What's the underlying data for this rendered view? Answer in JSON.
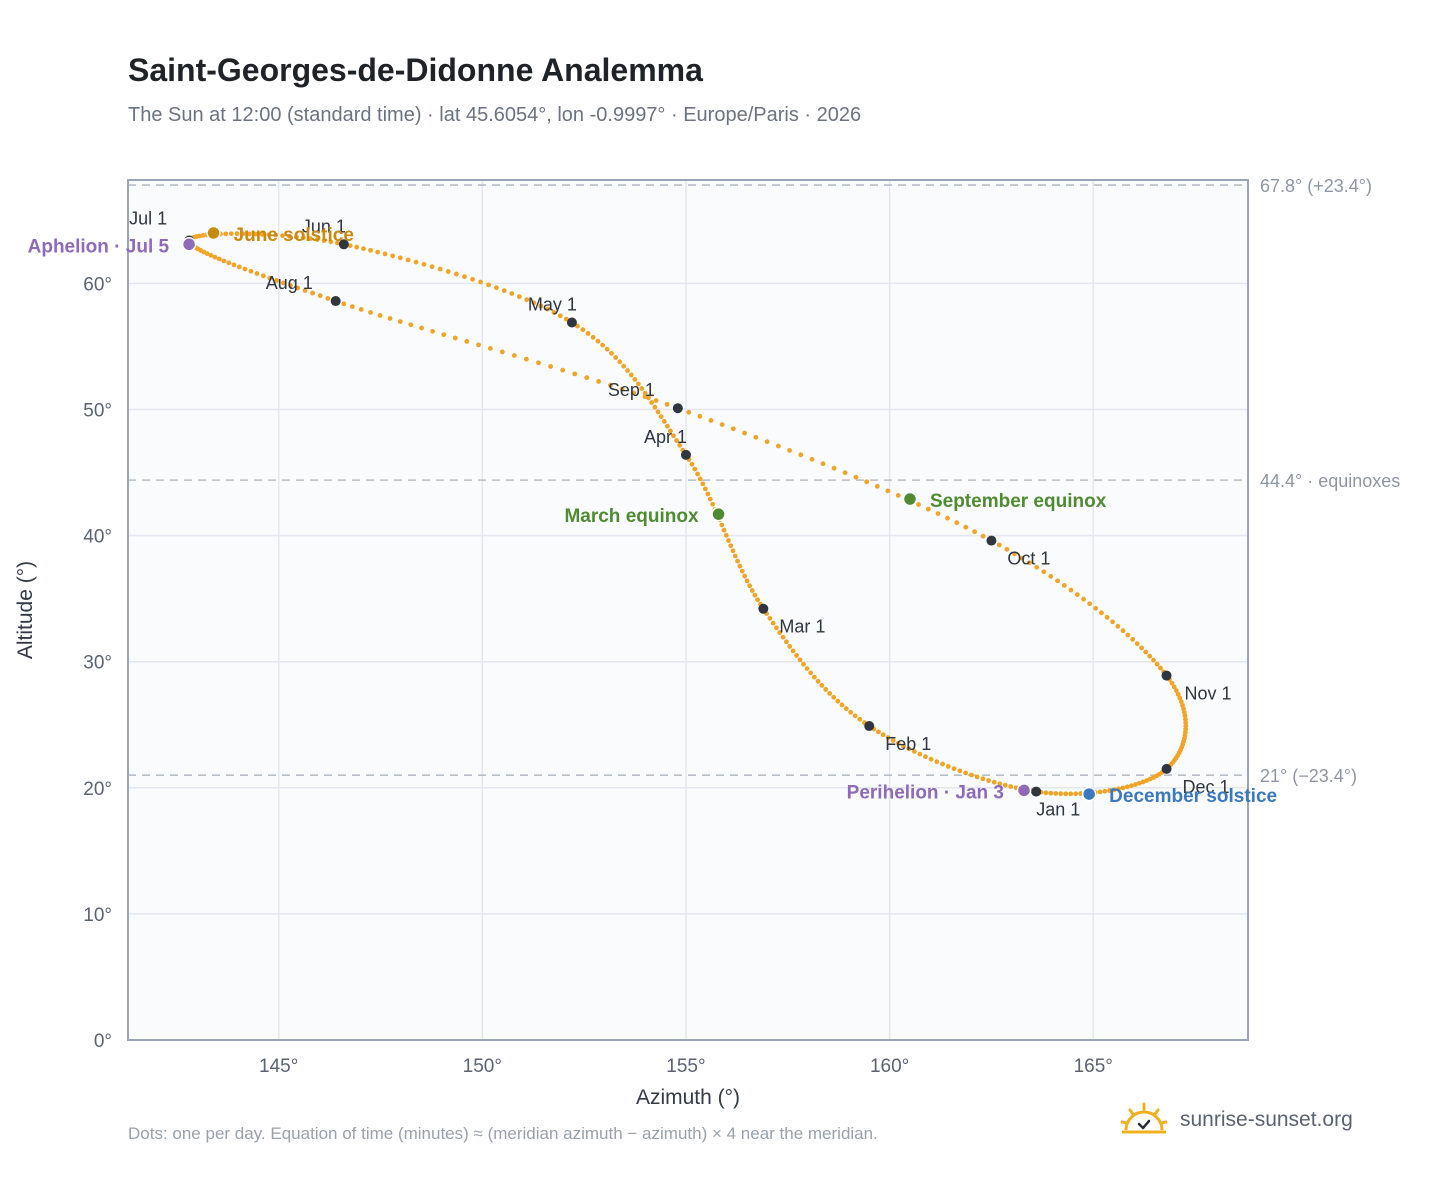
{
  "header": {
    "title": "Saint-Georges-de-Didonne Analemma",
    "subtitle": "The Sun at 12:00 (standard time) · lat 45.6054°, lon -0.9997° · Europe/Paris · 2026"
  },
  "footer": {
    "note": "Dots: one per day. Equation of time (minutes) ≈ (meridian azimuth − azimuth) × 4 near the meridian.",
    "brand": "sunrise-sunset.org"
  },
  "colors": {
    "curve": "#f0a428",
    "month_dot": "#2f3640",
    "june": "#c98a12",
    "december": "#3a78bf",
    "equinox": "#4f8b32",
    "apsis": "#8e6ab9",
    "plot_bg": "#f9fbfd",
    "grid": "#e4e8ee",
    "frame": "#9aa5b5",
    "ref": "#b7bec8"
  },
  "chart_data": {
    "type": "scatter",
    "xlabel": "Azimuth (°)",
    "ylabel": "Altitude (°)",
    "xlim": [
      141.3,
      168.8
    ],
    "ylim": [
      0,
      68.2
    ],
    "xticks": [
      145,
      150,
      155,
      160,
      165
    ],
    "xtick_labels": [
      "145°",
      "150°",
      "155°",
      "160°",
      "165°"
    ],
    "yticks": [
      0,
      10,
      20,
      30,
      40,
      50,
      60
    ],
    "ytick_labels": [
      "0°",
      "10°",
      "20°",
      "30°",
      "40°",
      "50°",
      "60°"
    ],
    "grid": true,
    "reference_lines": [
      {
        "y": 67.8,
        "label": "67.8° (+23.4°)"
      },
      {
        "y": 44.4,
        "label": "44.4° · equinoxes"
      },
      {
        "y": 21.0,
        "label": "21° (−23.4°)"
      }
    ],
    "months": [
      {
        "label": "Jan 1",
        "x": 163.6,
        "y": 19.7
      },
      {
        "label": "Feb 1",
        "x": 159.5,
        "y": 24.9
      },
      {
        "label": "Mar 1",
        "x": 156.9,
        "y": 34.2
      },
      {
        "label": "Apr 1",
        "x": 155.0,
        "y": 46.4
      },
      {
        "label": "May 1",
        "x": 152.2,
        "y": 56.9
      },
      {
        "label": "Jun 1",
        "x": 146.6,
        "y": 63.1
      },
      {
        "label": "Jul 1",
        "x": 142.8,
        "y": 63.4
      },
      {
        "label": "Aug 1",
        "x": 146.4,
        "y": 58.6
      },
      {
        "label": "Sep 1",
        "x": 154.8,
        "y": 50.1
      },
      {
        "label": "Oct 1",
        "x": 162.5,
        "y": 39.6
      },
      {
        "label": "Nov 1",
        "x": 166.8,
        "y": 28.9
      },
      {
        "label": "Dec 1",
        "x": 166.8,
        "y": 21.5
      }
    ],
    "events": [
      {
        "label": "June solstice",
        "x": 143.4,
        "y": 64.0,
        "kind": "june"
      },
      {
        "label": "Aphelion · Jul 5",
        "x": 142.8,
        "y": 63.1,
        "kind": "apsis"
      },
      {
        "label": "March equinox",
        "x": 155.8,
        "y": 41.7,
        "kind": "equinox"
      },
      {
        "label": "September equinox",
        "x": 160.5,
        "y": 42.9,
        "kind": "equinox"
      },
      {
        "label": "Perihelion · Jan 3",
        "x": 163.3,
        "y": 19.8,
        "kind": "apsis"
      },
      {
        "label": "December solstice",
        "x": 164.9,
        "y": 19.5,
        "kind": "december"
      }
    ]
  }
}
